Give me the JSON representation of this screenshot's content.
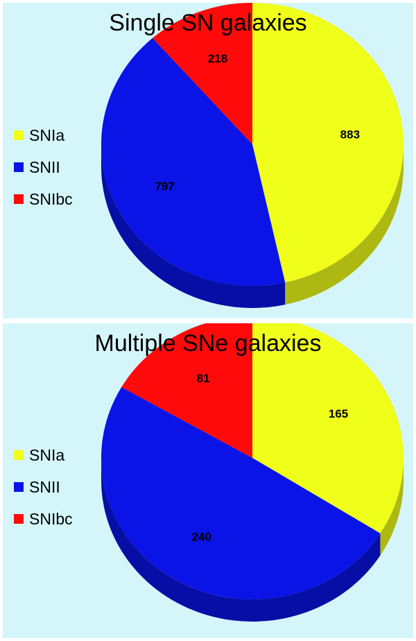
{
  "chart_data": [
    {
      "type": "pie",
      "title": "Single SN galaxies",
      "categories": [
        "SNIa",
        "SNII",
        "SNIbc"
      ],
      "values": [
        883,
        797,
        218
      ],
      "colors": [
        "#f0ff1a",
        "#0a14e6",
        "#ff0a0a"
      ],
      "legend_position": "left"
    },
    {
      "type": "pie",
      "title": "Multiple SNe galaxies",
      "categories": [
        "SNIa",
        "SNII",
        "SNIbc"
      ],
      "values": [
        165,
        240,
        81
      ],
      "colors": [
        "#f0ff1a",
        "#0a14e6",
        "#ff0a0a"
      ],
      "legend_position": "left"
    }
  ]
}
